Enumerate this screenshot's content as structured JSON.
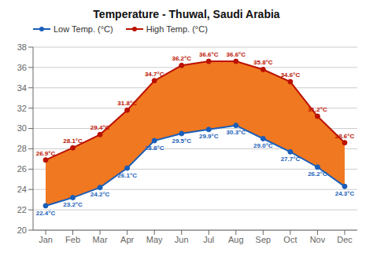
{
  "chart_data": {
    "type": "line",
    "title": "Temperature - Thuwal, Saudi Arabia",
    "categories": [
      "Jan",
      "Feb",
      "Mar",
      "Apr",
      "May",
      "Jun",
      "Jul",
      "Aug",
      "Sep",
      "Oct",
      "Nov",
      "Dec"
    ],
    "series": [
      {
        "name": "Low Temp. (°C)",
        "color": "#1a5eb8",
        "marker": "circle",
        "values": [
          22.4,
          23.2,
          24.2,
          26.1,
          28.8,
          29.5,
          29.9,
          30.3,
          29.0,
          27.7,
          26.2,
          24.3
        ],
        "value_labels": [
          "22.4°C",
          "23.2°C",
          "24.2°C",
          "26.1°C",
          "28.8°C",
          "29.5°C",
          "29.9°C",
          "30.3°C",
          "29.0°C",
          "27.7°C",
          "26.2°C",
          "24.3°C"
        ]
      },
      {
        "name": "High Temp. (°C)",
        "color": "#bb1100",
        "marker": "circle",
        "values": [
          26.9,
          28.1,
          29.4,
          31.8,
          34.7,
          36.2,
          36.6,
          36.6,
          35.8,
          34.6,
          31.2,
          28.6
        ],
        "value_labels": [
          "26.9°C",
          "28.1°C",
          "29.4°C",
          "31.8°C",
          "34.7°C",
          "36.2°C",
          "36.6°C",
          "36.6°C",
          "35.8°C",
          "34.6°C",
          "31.2°C",
          "28.6°C"
        ]
      }
    ],
    "color": "#f07820",
    "ylim": [
      20,
      38
    ],
    "yticks": [
      20,
      22,
      24,
      26,
      28,
      30,
      32,
      34,
      36,
      38
    ],
    "grid": true,
    "legend": "upper left",
    "data_labels": true
  }
}
